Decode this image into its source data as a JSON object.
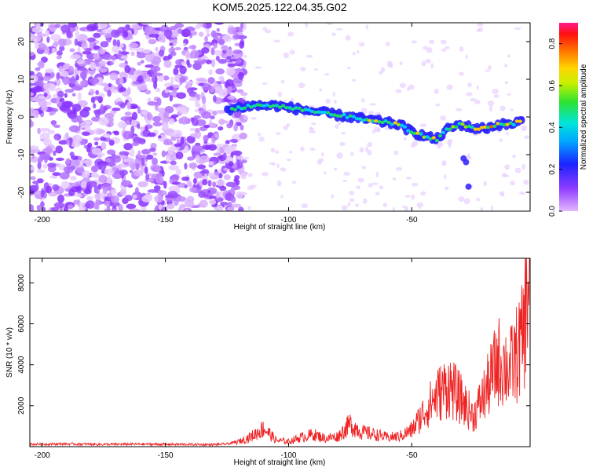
{
  "title": "KOM5.2025.122.04.35.G02",
  "chart_data": [
    {
      "type": "heatmap",
      "xlabel": "Height of straight line (km)",
      "ylabel": "Frequency (Hz)",
      "xlim": [
        -205,
        -2
      ],
      "ylim": [
        -25,
        25
      ],
      "xticks": [
        -200,
        -150,
        -100,
        -50
      ],
      "yticks": [
        -20,
        -10,
        0,
        10,
        20
      ],
      "colorbar": {
        "label": "Normalized spectral amplitude",
        "range": [
          0.0,
          0.9
        ],
        "ticks": [
          0.0,
          0.2,
          0.4,
          0.6,
          0.8
        ],
        "colormap": "rainbow (purple→blue→cyan→green→yellow→red→magenta)"
      },
      "signal_track": {
        "x": [
          -125,
          -115,
          -105,
          -95,
          -85,
          -75,
          -65,
          -55,
          -50,
          -45,
          -40,
          -35,
          -30,
          -25,
          -20,
          -15,
          -10,
          -5
        ],
        "y": [
          2,
          3,
          3,
          2,
          1,
          0,
          -1,
          -2,
          -4,
          -5,
          -6,
          -3,
          -2,
          -3,
          -3,
          -2,
          -2,
          -1
        ]
      }
    },
    {
      "type": "line",
      "xlabel": "Height of straight line (km)",
      "ylabel": "SNR (10 * v/v)",
      "xlim": [
        -205,
        -2
      ],
      "ylim": [
        0,
        9200
      ],
      "xticks": [
        -200,
        -150,
        -100,
        -50
      ],
      "yticks": [
        2000,
        4000,
        6000,
        8000
      ],
      "color": "#ee2222",
      "series": [
        {
          "x": [
            -205,
            -190,
            -175,
            -160,
            -145,
            -130,
            -125,
            -120,
            -115,
            -110,
            -105,
            -100,
            -95,
            -90,
            -85,
            -80,
            -75,
            -70,
            -65,
            -60,
            -55,
            -50,
            -45,
            -40,
            -35,
            -30,
            -25,
            -20,
            -15,
            -10,
            -5,
            -2
          ],
          "values": [
            120,
            130,
            110,
            120,
            110,
            100,
            130,
            250,
            500,
            900,
            300,
            250,
            450,
            600,
            400,
            500,
            1100,
            700,
            600,
            450,
            500,
            800,
            1700,
            2500,
            3000,
            2300,
            1500,
            2700,
            4200,
            3800,
            5200,
            8800
          ]
        }
      ]
    }
  ]
}
